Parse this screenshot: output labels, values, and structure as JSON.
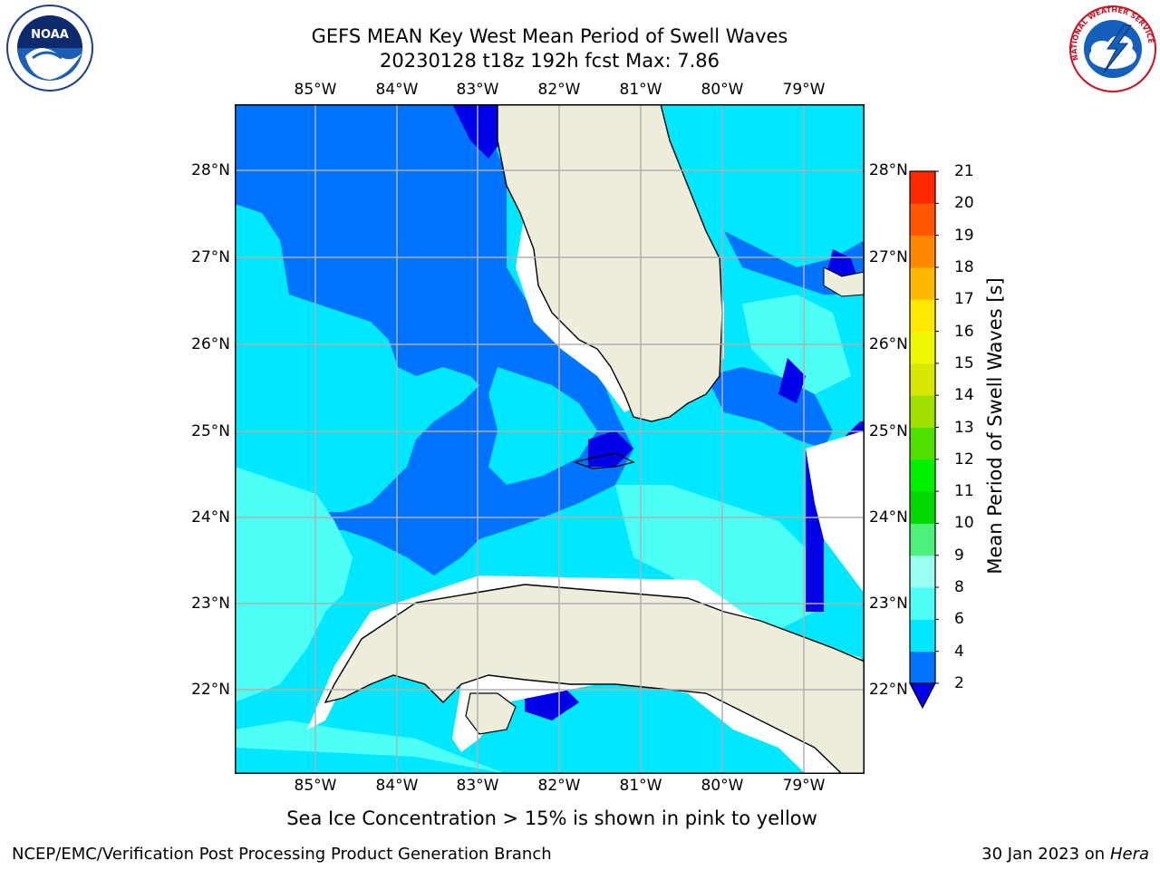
{
  "header": {
    "title_line1": "GEFS MEAN Key West Mean Period of Swell Waves",
    "title_line2": "20230128 t18z 192h fcst   Max: 7.86"
  },
  "logos": {
    "left": "noaa-logo",
    "left_text": "NOAA",
    "right": "national-weather-service-logo",
    "right_text": "NATIONAL WEATHER SERVICE"
  },
  "map": {
    "lon_labels": [
      "85°W",
      "84°W",
      "83°W",
      "82°W",
      "81°W",
      "80°W",
      "79°W"
    ],
    "lat_labels": [
      "28°N",
      "27°N",
      "26°N",
      "25°N",
      "24°N",
      "23°N",
      "22°N"
    ],
    "lon_range": [
      -86.0,
      -78.3
    ],
    "lat_range": [
      21.0,
      28.8
    ],
    "grid": true
  },
  "colorbar": {
    "label": "Mean Period of Swell Waves [s]",
    "ticks": [
      "2",
      "4",
      "6",
      "8",
      "9",
      "10",
      "11",
      "12",
      "13",
      "14",
      "15",
      "16",
      "17",
      "18",
      "19",
      "20",
      "21"
    ],
    "colors": [
      "#0074ff",
      "#00e8ff",
      "#4dfff4",
      "#99fff2",
      "#4df07a",
      "#00d800",
      "#00f000",
      "#50e000",
      "#a0e000",
      "#d8e800",
      "#f0f800",
      "#ffe800",
      "#ffb800",
      "#ff8800",
      "#ff5800",
      "#ff2800"
    ],
    "under_color": "#0000e8"
  },
  "notes": {
    "sea_ice": "Sea Ice Concentration > 15% is shown in pink to yellow"
  },
  "footer": {
    "left": "NCEP/EMC/Verification Post Processing Product Generation Branch",
    "right_prefix": "30 Jan 2023 on ",
    "right_host": "Hera"
  }
}
